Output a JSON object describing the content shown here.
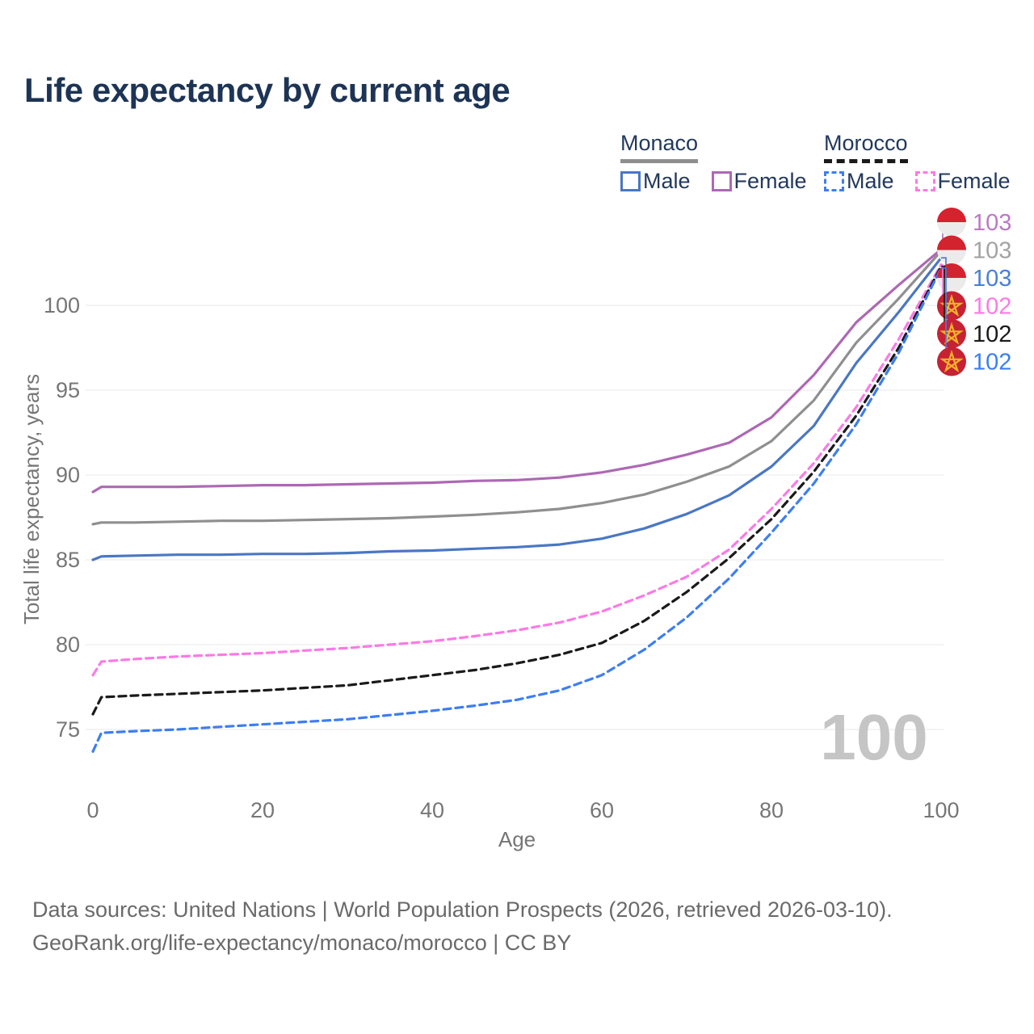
{
  "title": "Life expectancy by current age",
  "legend": {
    "monaco": {
      "label": "Monaco",
      "male": "Male",
      "female": "Female"
    },
    "morocco": {
      "label": "Morocco",
      "male": "Male",
      "female": "Female"
    }
  },
  "colors": {
    "monaco_male": "#4a77c4",
    "monaco_female": "#ad68b4",
    "monaco_all": "#8f8f8f",
    "morocco_male": "#3d7ef0",
    "morocco_female": "#fb7ae6",
    "morocco_all": "#1a1a1a",
    "title_text": "#1d3455",
    "axis_text": "#767676",
    "gridline": "#e8e8e8",
    "watermark": "#c5c5c5",
    "monaco_flag_red": "#d2232f",
    "monaco_flag_white": "#ebebeb",
    "morocco_flag_red": "#c62233",
    "morocco_flag_star": "#f3b229"
  },
  "chart_data": {
    "type": "line",
    "title": "Life expectancy by current age",
    "xlabel": "Age",
    "ylabel": "Total life expectancy, years",
    "xlim": [
      0,
      100
    ],
    "ylim": [
      73,
      105.5
    ],
    "x_ticks": [
      0,
      20,
      40,
      60,
      80,
      100
    ],
    "y_ticks": [
      75,
      80,
      85,
      90,
      95,
      100
    ],
    "grid": "horizontal",
    "legend_position": "top-right",
    "x": [
      0,
      1,
      5,
      10,
      15,
      20,
      25,
      30,
      35,
      40,
      45,
      50,
      55,
      60,
      65,
      70,
      75,
      80,
      85,
      90,
      95,
      100
    ],
    "series": [
      {
        "id": "monaco-female",
        "name": "Monaco Female",
        "country": "Monaco",
        "sex": "Female",
        "style": "solid",
        "color": "#ad68b4",
        "label_color": "#bb79c5",
        "flag": "monaco",
        "end_label": "103",
        "values": [
          89.0,
          89.3,
          89.3,
          89.3,
          89.35,
          89.4,
          89.4,
          89.45,
          89.5,
          89.55,
          89.65,
          89.7,
          89.85,
          90.15,
          90.6,
          91.2,
          91.9,
          93.4,
          95.9,
          99.0,
          101.2,
          103.3
        ]
      },
      {
        "id": "monaco-all",
        "name": "Monaco Both sexes",
        "country": "Monaco",
        "sex": "All",
        "style": "solid",
        "color": "#8f8f8f",
        "label_color": "#a3a3a3",
        "flag": "monaco",
        "end_label": "103",
        "values": [
          87.1,
          87.2,
          87.2,
          87.25,
          87.3,
          87.3,
          87.35,
          87.4,
          87.45,
          87.55,
          87.65,
          87.8,
          88.0,
          88.35,
          88.85,
          89.6,
          90.5,
          92.0,
          94.4,
          97.8,
          100.4,
          103.2
        ]
      },
      {
        "id": "monaco-male",
        "name": "Monaco Male",
        "country": "Monaco",
        "sex": "Male",
        "style": "solid",
        "color": "#4a77c4",
        "label_color": "#4a7fd4",
        "flag": "monaco",
        "end_label": "103",
        "values": [
          85.0,
          85.2,
          85.25,
          85.3,
          85.3,
          85.35,
          85.35,
          85.4,
          85.5,
          85.55,
          85.65,
          85.75,
          85.9,
          86.25,
          86.85,
          87.7,
          88.8,
          90.5,
          92.9,
          96.6,
          99.6,
          102.8
        ]
      },
      {
        "id": "morocco-female",
        "name": "Morocco Female",
        "country": "Morocco",
        "sex": "Female",
        "style": "dashed",
        "color": "#fb7ae6",
        "label_color": "#fb7ae6",
        "flag": "morocco",
        "end_label": "102",
        "values": [
          78.2,
          79.0,
          79.15,
          79.3,
          79.4,
          79.5,
          79.65,
          79.8,
          80.0,
          80.2,
          80.5,
          80.85,
          81.3,
          81.95,
          82.9,
          84.0,
          85.6,
          88.0,
          90.7,
          94.0,
          98.0,
          102.4
        ]
      },
      {
        "id": "morocco-all",
        "name": "Morocco Both sexes",
        "country": "Morocco",
        "sex": "All",
        "style": "dashed",
        "color": "#1a1a1a",
        "label_color": "#1a1a1a",
        "flag": "morocco",
        "end_label": "102",
        "values": [
          75.9,
          76.9,
          77.0,
          77.1,
          77.2,
          77.3,
          77.45,
          77.6,
          77.9,
          78.2,
          78.5,
          78.9,
          79.4,
          80.1,
          81.4,
          83.1,
          85.1,
          87.4,
          90.2,
          93.5,
          97.5,
          102.3
        ]
      },
      {
        "id": "morocco-male",
        "name": "Morocco Male",
        "country": "Morocco",
        "sex": "Male",
        "style": "dashed",
        "color": "#3d7ef0",
        "label_color": "#3d7ef0",
        "flag": "morocco",
        "end_label": "102",
        "values": [
          73.7,
          74.8,
          74.9,
          75.0,
          75.15,
          75.3,
          75.45,
          75.6,
          75.85,
          76.1,
          76.4,
          76.75,
          77.3,
          78.2,
          79.7,
          81.6,
          83.9,
          86.6,
          89.5,
          93.0,
          97.2,
          102.2
        ]
      }
    ],
    "annotations": {
      "watermark": "100"
    }
  },
  "footer": {
    "line1": "Data sources: United Nations | World Population Prospects (2026, retrieved 2026-03-10).",
    "line2": "GeoRank.org/life-expectancy/monaco/morocco | CC BY"
  }
}
